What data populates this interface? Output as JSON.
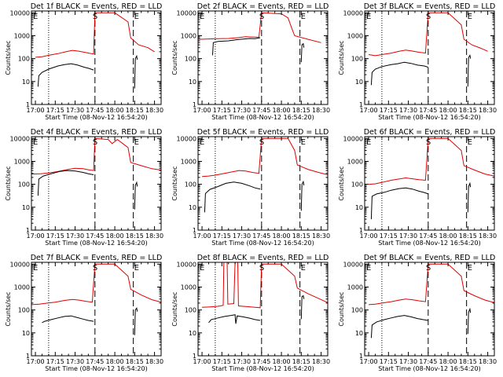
{
  "figure": {
    "xlabel": "Start Time (08-Nov-12 16:54:20)",
    "ylabel": "Counts/sec"
  },
  "chart_data": {
    "type": "line",
    "x_tick_labels": [
      "17:00",
      "17:15",
      "17:30",
      "17:45",
      "18:00",
      "18:15",
      "18:30"
    ],
    "x_ticks_minutes": [
      0,
      15,
      30,
      45,
      60,
      75,
      90
    ],
    "xlim_minutes": [
      -3,
      95
    ],
    "yscale": "log",
    "ylim": [
      1,
      12000
    ],
    "y_tick_values": [
      1,
      10,
      100,
      1000,
      10000
    ],
    "y_tick_labels": [
      "1",
      "10",
      "100",
      "1000",
      "10000"
    ],
    "series_colors": {
      "events": "#000000",
      "lld": "#e00000"
    },
    "marker_labels": {
      "E": "E",
      "S": "S"
    },
    "markers": {
      "dotted_min": 10,
      "S_min": 45,
      "E_min": 74
    },
    "panels": [
      {
        "title": "Det 1f  BLACK = Events, RED = LLD",
        "events": [
          [
            2,
            6
          ],
          [
            2.6,
            18
          ],
          [
            5,
            25
          ],
          [
            10,
            35
          ],
          [
            17,
            48
          ],
          [
            22,
            55
          ],
          [
            27,
            60
          ],
          [
            32,
            52
          ],
          [
            37,
            42
          ],
          [
            40,
            38
          ],
          [
            44,
            32
          ]
        ],
        "lld": [
          [
            0,
            115
          ],
          [
            5,
            120
          ],
          [
            10,
            140
          ],
          [
            17,
            165
          ],
          [
            23,
            200
          ],
          [
            28,
            230
          ],
          [
            33,
            210
          ],
          [
            37,
            190
          ],
          [
            41,
            170
          ],
          [
            44,
            160
          ],
          [
            45,
            10000
          ],
          [
            60,
            10000
          ],
          [
            70,
            4000
          ],
          [
            72,
            800
          ],
          [
            78,
            400
          ],
          [
            85,
            300
          ],
          [
            90,
            200
          ]
        ],
        "tail": [
          [
            75,
            5
          ],
          [
            75.5,
            100
          ],
          [
            76.5,
            130
          ],
          [
            77,
            90
          ]
        ]
      },
      {
        "title": "Det 2f  BLACK = Events, RED = LLD",
        "events": [
          [
            8,
            140
          ],
          [
            8.5,
            500
          ],
          [
            12,
            560
          ],
          [
            20,
            600
          ],
          [
            27,
            680
          ],
          [
            32,
            720
          ],
          [
            36,
            760
          ],
          [
            40,
            740
          ],
          [
            44,
            820
          ]
        ],
        "lld": [
          [
            -3,
            700
          ],
          [
            5,
            720
          ],
          [
            12,
            740
          ],
          [
            20,
            760
          ],
          [
            27,
            820
          ],
          [
            33,
            900
          ],
          [
            38,
            880
          ],
          [
            43,
            860
          ],
          [
            45,
            10000
          ],
          [
            60,
            9000
          ],
          [
            65,
            6000
          ],
          [
            68,
            2000
          ],
          [
            70,
            1000
          ],
          [
            80,
            700
          ],
          [
            90,
            500
          ]
        ],
        "tail": [
          [
            75,
            70
          ],
          [
            75.5,
            400
          ],
          [
            76.5,
            450
          ],
          [
            77,
            300
          ]
        ]
      },
      {
        "title": "Det 3f  BLACK = Events, RED = LLD",
        "events": [
          [
            2,
            7
          ],
          [
            2.6,
            25
          ],
          [
            5,
            35
          ],
          [
            10,
            45
          ],
          [
            17,
            55
          ],
          [
            22,
            60
          ],
          [
            27,
            70
          ],
          [
            32,
            62
          ],
          [
            37,
            52
          ],
          [
            42,
            48
          ],
          [
            45,
            42
          ]
        ],
        "lld": [
          [
            0,
            150
          ],
          [
            5,
            135
          ],
          [
            10,
            150
          ],
          [
            17,
            175
          ],
          [
            23,
            210
          ],
          [
            28,
            235
          ],
          [
            33,
            215
          ],
          [
            38,
            190
          ],
          [
            43,
            175
          ],
          [
            45,
            10000
          ],
          [
            60,
            10000
          ],
          [
            70,
            3000
          ],
          [
            72,
            700
          ],
          [
            78,
            400
          ],
          [
            85,
            280
          ],
          [
            90,
            210
          ]
        ],
        "tail": [
          [
            75,
            6
          ],
          [
            75.5,
            110
          ],
          [
            76.5,
            140
          ],
          [
            77,
            100
          ]
        ]
      },
      {
        "title": "Det 4f  BLACK = Events, RED = LLD",
        "events": [
          [
            2,
            32
          ],
          [
            2.6,
            170
          ],
          [
            6,
            230
          ],
          [
            12,
            290
          ],
          [
            18,
            360
          ],
          [
            24,
            400
          ],
          [
            30,
            380
          ],
          [
            36,
            330
          ],
          [
            40,
            290
          ],
          [
            44,
            260
          ]
        ],
        "lld": [
          [
            -3,
            280
          ],
          [
            4,
            290
          ],
          [
            10,
            310
          ],
          [
            17,
            360
          ],
          [
            23,
            430
          ],
          [
            30,
            500
          ],
          [
            36,
            480
          ],
          [
            41,
            420
          ],
          [
            44,
            400
          ],
          [
            45,
            10000
          ],
          [
            55,
            9000
          ],
          [
            58,
            6000
          ],
          [
            62,
            9000
          ],
          [
            66,
            6000
          ],
          [
            70,
            4000
          ],
          [
            72,
            900
          ],
          [
            80,
            650
          ],
          [
            88,
            480
          ],
          [
            95,
            420
          ]
        ],
        "tail": [
          [
            75,
            8
          ],
          [
            75.5,
            90
          ],
          [
            76.5,
            120
          ],
          [
            77,
            80
          ]
        ]
      },
      {
        "title": "Det 5f  BLACK = Events, RED = LLD",
        "events": [
          [
            2,
            6
          ],
          [
            2.6,
            40
          ],
          [
            6,
            60
          ],
          [
            12,
            80
          ],
          [
            18,
            110
          ],
          [
            24,
            125
          ],
          [
            30,
            110
          ],
          [
            36,
            85
          ],
          [
            40,
            70
          ],
          [
            44,
            62
          ]
        ],
        "lld": [
          [
            0,
            220
          ],
          [
            5,
            230
          ],
          [
            10,
            250
          ],
          [
            17,
            300
          ],
          [
            23,
            350
          ],
          [
            28,
            400
          ],
          [
            33,
            380
          ],
          [
            38,
            330
          ],
          [
            43,
            300
          ],
          [
            45,
            10000
          ],
          [
            55,
            10000
          ],
          [
            65,
            10000
          ],
          [
            70,
            3000
          ],
          [
            72,
            700
          ],
          [
            80,
            450
          ],
          [
            88,
            330
          ],
          [
            95,
            260
          ]
        ],
        "tail": [
          [
            75,
            7
          ],
          [
            75.5,
            100
          ],
          [
            76.5,
            130
          ],
          [
            77,
            90
          ]
        ]
      },
      {
        "title": "Det 6f  BLACK = Events, RED = LLD",
        "events": [
          [
            2,
            3
          ],
          [
            2.6,
            30
          ],
          [
            6,
            38
          ],
          [
            12,
            45
          ],
          [
            17,
            55
          ],
          [
            23,
            65
          ],
          [
            28,
            70
          ],
          [
            33,
            62
          ],
          [
            38,
            50
          ],
          [
            42,
            44
          ],
          [
            45,
            38
          ]
        ],
        "lld": [
          [
            0,
            100
          ],
          [
            5,
            105
          ],
          [
            10,
            120
          ],
          [
            17,
            150
          ],
          [
            23,
            170
          ],
          [
            28,
            190
          ],
          [
            33,
            175
          ],
          [
            38,
            160
          ],
          [
            43,
            150
          ],
          [
            45,
            10000
          ],
          [
            60,
            10000
          ],
          [
            70,
            3000
          ],
          [
            72,
            650
          ],
          [
            80,
            420
          ],
          [
            88,
            280
          ],
          [
            95,
            230
          ]
        ],
        "tail": [
          [
            75,
            6
          ],
          [
            75.5,
            80
          ],
          [
            76.5,
            110
          ],
          [
            77,
            75
          ]
        ]
      },
      {
        "title": "Det 7f  BLACK = Events, RED = LLD",
        "events": [
          [
            5,
            28
          ],
          [
            7,
            32
          ],
          [
            12,
            38
          ],
          [
            17,
            45
          ],
          [
            22,
            52
          ],
          [
            27,
            55
          ],
          [
            31,
            48
          ],
          [
            36,
            40
          ],
          [
            40,
            35
          ],
          [
            44,
            32
          ]
        ],
        "lld": [
          [
            -3,
            170
          ],
          [
            3,
            180
          ],
          [
            9,
            200
          ],
          [
            15,
            220
          ],
          [
            22,
            260
          ],
          [
            28,
            290
          ],
          [
            33,
            270
          ],
          [
            38,
            240
          ],
          [
            43,
            220
          ],
          [
            45,
            10000
          ],
          [
            60,
            10000
          ],
          [
            70,
            3000
          ],
          [
            72,
            800
          ],
          [
            80,
            450
          ],
          [
            88,
            280
          ],
          [
            95,
            220
          ]
        ],
        "tail": [
          [
            75,
            8
          ],
          [
            75.5,
            100
          ],
          [
            76.5,
            120
          ],
          [
            77,
            85
          ]
        ]
      },
      {
        "title": "Det 8f  BLACK = Events, RED = LLD",
        "events": [
          [
            5,
            28
          ],
          [
            7,
            38
          ],
          [
            12,
            45
          ],
          [
            17,
            52
          ],
          [
            22,
            58
          ],
          [
            25,
            62
          ],
          [
            25.5,
            25
          ],
          [
            26.5,
            55
          ],
          [
            31,
            50
          ],
          [
            36,
            44
          ],
          [
            40,
            38
          ],
          [
            44,
            35
          ]
        ],
        "lld": [
          [
            0,
            130
          ],
          [
            5,
            135
          ],
          [
            10,
            140
          ],
          [
            14,
            150
          ],
          [
            16,
            160
          ],
          [
            16.5,
            12000
          ],
          [
            19,
            12000
          ],
          [
            19.5,
            180
          ],
          [
            24,
            190
          ],
          [
            25,
            12000
          ],
          [
            27,
            12000
          ],
          [
            27.5,
            150
          ],
          [
            34,
            140
          ],
          [
            40,
            130
          ],
          [
            44,
            125
          ],
          [
            45,
            10000
          ],
          [
            60,
            10000
          ],
          [
            70,
            3000
          ],
          [
            72,
            900
          ],
          [
            80,
            520
          ],
          [
            88,
            320
          ],
          [
            95,
            210
          ]
        ],
        "tail": [
          [
            75,
            40
          ],
          [
            75.5,
            380
          ],
          [
            76.5,
            420
          ],
          [
            77,
            300
          ]
        ]
      },
      {
        "title": "Det 9f  BLACK = Events, RED = LLD",
        "events": [
          [
            2,
            6
          ],
          [
            2.6,
            22
          ],
          [
            6,
            30
          ],
          [
            12,
            38
          ],
          [
            17,
            45
          ],
          [
            22,
            52
          ],
          [
            27,
            58
          ],
          [
            32,
            50
          ],
          [
            37,
            42
          ],
          [
            41,
            38
          ],
          [
            45,
            35
          ]
        ],
        "lld": [
          [
            0,
            170
          ],
          [
            5,
            180
          ],
          [
            10,
            200
          ],
          [
            17,
            230
          ],
          [
            23,
            270
          ],
          [
            28,
            300
          ],
          [
            33,
            280
          ],
          [
            38,
            250
          ],
          [
            43,
            230
          ],
          [
            45,
            10000
          ],
          [
            60,
            10000
          ],
          [
            70,
            3000
          ],
          [
            72,
            700
          ],
          [
            80,
            420
          ],
          [
            88,
            270
          ],
          [
            95,
            210
          ]
        ],
        "tail": [
          [
            75,
            9
          ],
          [
            75.5,
            80
          ],
          [
            76.5,
            110
          ],
          [
            77,
            75
          ]
        ]
      }
    ]
  }
}
